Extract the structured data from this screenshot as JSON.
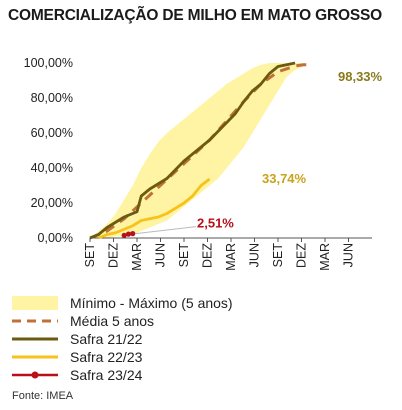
{
  "title": "COMERCIALIZAÇÃO DE MILHO EM MATO GROSSO",
  "source": "Fonte: IMEA",
  "chart_data": {
    "type": "line",
    "title": "COMERCIALIZAÇÃO DE MILHO EM MATO GROSSO",
    "xlabel": "",
    "ylabel": "",
    "ylim": [
      0,
      100
    ],
    "yticks": [
      "0,00%",
      "20,00%",
      "40,00%",
      "60,00%",
      "80,00%",
      "100,00%"
    ],
    "ytick_values": [
      0,
      20,
      40,
      60,
      80,
      100
    ],
    "x_ticks": [
      "SET",
      "DEZ",
      "MAR",
      "JUN",
      "SET",
      "DEZ",
      "MAR",
      "JUN",
      "SET",
      "DEZ",
      "MAR",
      "JUN"
    ],
    "grid": false,
    "legend_position": "bottom-left",
    "colors": {
      "band": "#fff4a3",
      "media": "#c0703a",
      "s2122": "#6b5a10",
      "s2223": "#f7c21c",
      "s2324": "#b8101a",
      "annot_media": "#8a7a1c",
      "annot_s2223": "#c9a31a",
      "annot_s2324": "#b8101a"
    },
    "annotations": [
      {
        "text": "98,33%",
        "series": "Média 5 anos"
      },
      {
        "text": "33,74%",
        "series": "Safra 22/23"
      },
      {
        "text": "2,51%",
        "series": "Safra 23/24"
      }
    ],
    "series": [
      {
        "name": "Mínimo - Máximo (5 anos)",
        "kind": "band",
        "x": [
          0,
          1,
          2,
          3,
          4,
          5,
          6,
          7,
          8,
          9,
          10,
          11,
          12,
          13,
          14,
          15,
          16,
          17,
          18,
          19,
          20,
          21,
          22,
          23,
          24,
          25
        ],
        "lower": [
          0,
          0,
          0,
          1,
          1,
          2,
          4,
          6,
          8,
          10,
          14,
          18,
          22,
          26,
          30,
          34,
          40,
          46,
          52,
          60,
          68,
          76,
          84,
          92,
          96,
          98
        ],
        "upper": [
          0,
          4,
          8,
          14,
          22,
          30,
          40,
          48,
          55,
          60,
          64,
          68,
          72,
          76,
          80,
          84,
          88,
          91,
          94,
          97,
          99,
          100,
          100,
          100,
          100,
          100
        ]
      },
      {
        "name": "Média 5 anos",
        "kind": "dashed",
        "x": [
          0,
          2,
          4,
          6,
          8,
          10,
          12,
          14,
          16,
          18,
          20,
          22,
          24,
          25,
          26
        ],
        "y": [
          0,
          4,
          11,
          20,
          29,
          38,
          47,
          56,
          67,
          78,
          88,
          95,
          98.33,
          99,
          99
        ]
      },
      {
        "name": "Safra 21/22",
        "kind": "line",
        "x": [
          0,
          1,
          2,
          3,
          4,
          5,
          5.5,
          6,
          7,
          8,
          9,
          10,
          11,
          12,
          13,
          14,
          15,
          16,
          17,
          18,
          19,
          20,
          21,
          22,
          23,
          24
        ],
        "y": [
          0,
          2,
          6,
          9,
          12,
          14,
          15,
          24,
          28,
          31,
          34,
          39,
          44,
          48,
          52,
          56,
          61,
          66,
          71,
          78,
          84,
          88,
          94,
          98,
          99,
          100
        ]
      },
      {
        "name": "Safra 22/23",
        "kind": "line",
        "x": [
          1,
          2,
          3,
          4,
          5,
          6,
          7,
          8,
          9,
          10,
          11,
          12,
          13,
          14
        ],
        "y": [
          0,
          2,
          3,
          5,
          7,
          10,
          11,
          12,
          14,
          17,
          20,
          24,
          30,
          33.74
        ]
      },
      {
        "name": "Safra 23/24",
        "kind": "dots",
        "x": [
          4,
          4.5,
          5
        ],
        "y": [
          1.5,
          2.2,
          2.51
        ]
      }
    ]
  }
}
